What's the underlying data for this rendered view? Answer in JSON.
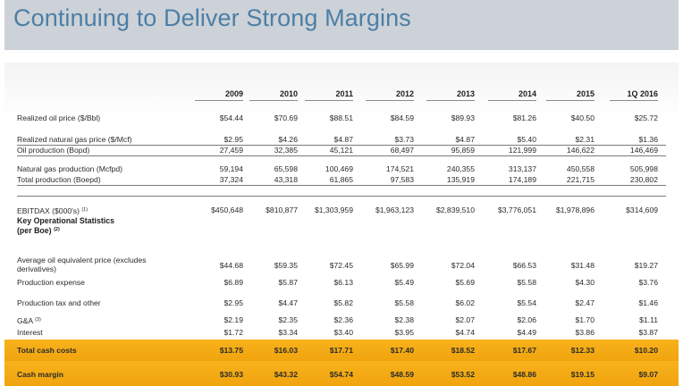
{
  "title": "Continuing to Deliver Strong Margins",
  "columns": [
    "2009",
    "2010",
    "2011",
    "2012",
    "2013",
    "2014",
    "2015",
    "1Q 2016"
  ],
  "rows": [
    {
      "label": "Realized oil price ($/Bbl)",
      "values": [
        "$54.44",
        "$70.69",
        "$88.51",
        "$84.59",
        "$89.93",
        "$81.26",
        "$40.50",
        "$25.72"
      ]
    },
    {
      "label": "Realized natural gas price ($/Mcf)",
      "values": [
        "$2.95",
        "$4.26",
        "$4.87",
        "$3.73",
        "$4.87",
        "$5.40",
        "$2.31",
        "$1.36"
      ]
    },
    {
      "label": "Oil production (Bopd)",
      "values": [
        "27,459",
        "32,385",
        "45,121",
        "68,497",
        "95,859",
        "121,999",
        "146,622",
        "146,469"
      ]
    },
    {
      "label": "Natural gas production (Mcfpd)",
      "values": [
        "59,194",
        "65,598",
        "100,469",
        "174,521",
        "240,355",
        "313,137",
        "450,558",
        "505,998"
      ]
    },
    {
      "label": "Total production (Boepd)",
      "values": [
        "37,324",
        "43,318",
        "61,865",
        "97,583",
        "135,919",
        "174,189",
        "221,715",
        "230,802"
      ]
    },
    {
      "label": "EBITDAX ($000's)",
      "sup": "(1)",
      "values": [
        "$450,648",
        "$810,877",
        "$1,303,959",
        "$1,963,123",
        "$2,839,510",
        "$3,776,051",
        "$1,978,896",
        "$314,609"
      ]
    },
    {
      "label_line1": "Key Operational Statistics",
      "label_line2": "(per Boe)",
      "sup": "(2)"
    },
    {
      "label_line1": "Average oil equivalent price (excludes",
      "label_line2": "derivatives)",
      "values": [
        "$44.68",
        "$59.35",
        "$72.45",
        "$65.99",
        "$72.04",
        "$66.53",
        "$31.48",
        "$19.27"
      ]
    },
    {
      "label": "Production expense",
      "values": [
        "$6.89",
        "$5.87",
        "$6.13",
        "$5.49",
        "$5.69",
        "$5.58",
        "$4.30",
        "$3.76"
      ]
    },
    {
      "label": "Production tax and other",
      "values": [
        "$2.95",
        "$4.47",
        "$5.82",
        "$5.58",
        "$6.02",
        "$5.54",
        "$2.47",
        "$1.46"
      ]
    },
    {
      "label": "G&A",
      "sup": "(3)",
      "values": [
        "$2.19",
        "$2.35",
        "$2.36",
        "$2.38",
        "$2.07",
        "$2.06",
        "$1.70",
        "$1.11"
      ]
    },
    {
      "label": "Interest",
      "values": [
        "$1.72",
        "$3.34",
        "$3.40",
        "$3.95",
        "$4.74",
        "$4.49",
        "$3.86",
        "$3.87"
      ]
    },
    {
      "label": "Total cash costs",
      "values": [
        "$13.75",
        "$16.03",
        "$17.71",
        "$17.40",
        "$18.52",
        "$17.67",
        "$12.33",
        "$10.20"
      ]
    },
    {
      "label": "Cash margin",
      "values": [
        "$30.93",
        "$43.32",
        "$54.74",
        "$48.59",
        "$53.52",
        "$48.86",
        "$19.15",
        "$9.07"
      ]
    }
  ],
  "colors": {
    "title": "#4b7fa6",
    "header_band": "#cdd2d8",
    "highlight": "#f5ab15"
  }
}
